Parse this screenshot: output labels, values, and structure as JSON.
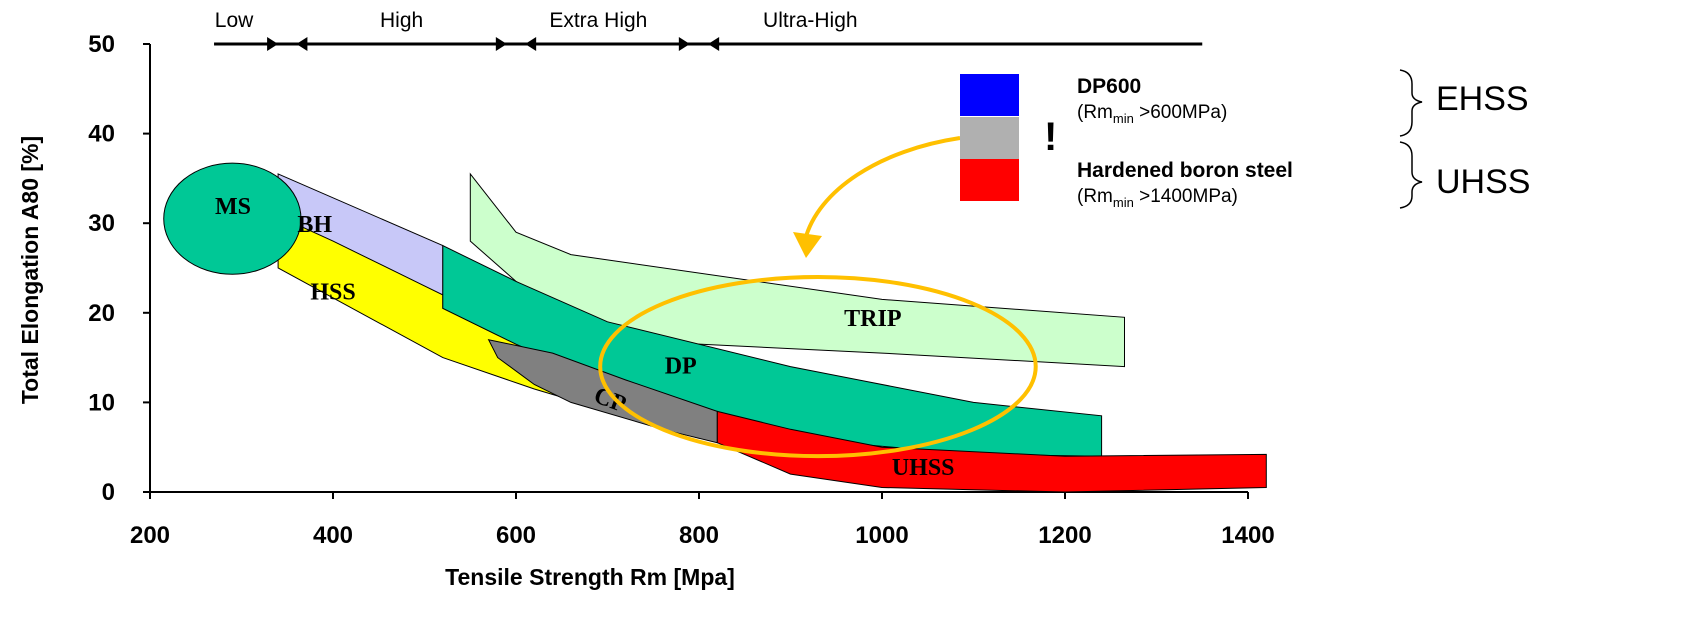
{
  "chart_data": {
    "type": "area",
    "xlabel": "Tensile Strength Rm [Mpa]",
    "ylabel": "Total Elongation A80 [%]",
    "xlim": [
      200,
      1400
    ],
    "ylim": [
      0,
      50
    ],
    "x_ticks": [
      "200",
      "400",
      "600",
      "800",
      "1000",
      "1200",
      "1400"
    ],
    "y_ticks": [
      "0",
      "10",
      "20",
      "30",
      "40",
      "50"
    ],
    "strength_categories": [
      {
        "label": "Low",
        "range": [
          270,
          340
        ]
      },
      {
        "label": "High",
        "range": [
          360,
          590
        ]
      },
      {
        "label": "Extra High",
        "range": [
          610,
          790
        ]
      },
      {
        "label": "Ultra-High",
        "range": [
          810,
          1350
        ]
      }
    ],
    "regions": [
      {
        "name": "MS",
        "color": "#00c896",
        "shape": "ellipse",
        "center": [
          290,
          30.5
        ],
        "radius": [
          75,
          6.2
        ]
      },
      {
        "name": "BH",
        "color": "#c8c8f8",
        "outline": [
          [
            340,
            35.5
          ],
          [
            520,
            27.5
          ],
          [
            520,
            22
          ],
          [
            340,
            30.8
          ]
        ]
      },
      {
        "name": "HSS",
        "color": "#ffff00",
        "outline": [
          [
            340,
            30.8
          ],
          [
            400,
            28
          ],
          [
            520,
            22
          ],
          [
            520,
            20.5
          ],
          [
            580,
            17.5
          ],
          [
            660,
            14
          ],
          [
            820,
            7
          ],
          [
            800,
            6
          ],
          [
            620,
            11.5
          ],
          [
            520,
            15
          ],
          [
            340,
            25
          ]
        ]
      },
      {
        "name": "TRIP",
        "color": "#ccffcc",
        "outline": [
          [
            550,
            35.5
          ],
          [
            600,
            29
          ],
          [
            660,
            26.5
          ],
          [
            1000,
            21.5
          ],
          [
            1265,
            19.5
          ],
          [
            1265,
            14
          ],
          [
            1000,
            15.5
          ],
          [
            700,
            17
          ],
          [
            600,
            23.5
          ],
          [
            550,
            28
          ]
        ]
      },
      {
        "name": "DP",
        "color": "#00c896",
        "outline": [
          [
            520,
            27.5
          ],
          [
            600,
            23.5
          ],
          [
            700,
            19
          ],
          [
            900,
            14
          ],
          [
            1100,
            10
          ],
          [
            1240,
            8.5
          ],
          [
            1240,
            4
          ],
          [
            1100,
            4.2
          ],
          [
            900,
            6
          ],
          [
            800,
            9
          ],
          [
            700,
            12
          ],
          [
            600,
            16.5
          ],
          [
            520,
            20.5
          ]
        ]
      },
      {
        "name": "CP",
        "color": "#808080",
        "outline": [
          [
            570,
            17
          ],
          [
            640,
            15.5
          ],
          [
            720,
            12.5
          ],
          [
            820,
            9
          ],
          [
            820,
            5.5
          ],
          [
            760,
            7
          ],
          [
            660,
            10
          ],
          [
            620,
            12
          ],
          [
            580,
            15
          ]
        ]
      },
      {
        "name": "UHSS",
        "color": "#ff0000",
        "outline": [
          [
            820,
            9
          ],
          [
            900,
            7
          ],
          [
            1000,
            5
          ],
          [
            1200,
            4
          ],
          [
            1420,
            4.2
          ],
          [
            1420,
            0.5
          ],
          [
            1200,
            0
          ],
          [
            1000,
            0.5
          ],
          [
            900,
            2
          ],
          [
            820,
            5.5
          ]
        ]
      }
    ],
    "highlight_circle": {
      "color": "#ffc000",
      "center": [
        930,
        14
      ],
      "radius": [
        238,
        10
      ]
    }
  },
  "legend": {
    "swatches": [
      {
        "color": "#0000ff"
      },
      {
        "color": "#b0b0b0"
      },
      {
        "color": "#ff0000"
      }
    ],
    "exclamation": "!",
    "dp600_title": "DP600",
    "dp600_sub_pre": "(Rm",
    "dp600_sub_idx": "min",
    "dp600_sub_post": " >600MPa)",
    "boron_title": "Hardened boron steel",
    "boron_sub_pre": "(Rm",
    "boron_sub_idx": "min",
    "boron_sub_post": " >1400MPa)",
    "group_ehss": "EHSS",
    "group_uhss": "UHSS"
  }
}
